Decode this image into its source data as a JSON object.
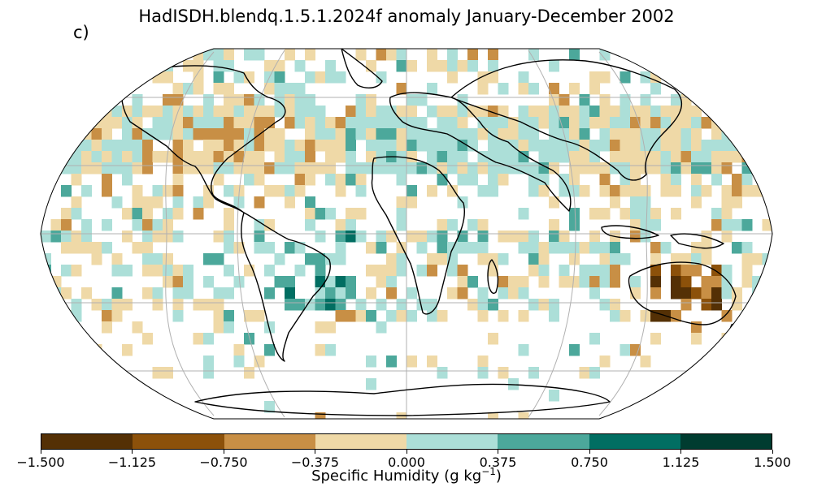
{
  "title": "HadISDH.blendq.1.5.1.2024f anomaly January-December 2002",
  "panel_label": "c)",
  "colorbar": {
    "ticks": [
      "−1.500",
      "−1.125",
      "−0.750",
      "−0.375",
      "0.000",
      "0.375",
      "0.750",
      "1.125",
      "1.500"
    ],
    "label_main": "Specific Humidity (g kg",
    "label_exp": "−1",
    "label_tail": ")",
    "colors": [
      "#543005",
      "#8c510a",
      "#c88f45",
      "#efd9a7",
      "#acdfd8",
      "#4ca89b",
      "#016e62",
      "#003c30"
    ]
  },
  "legend_colors": {
    "land_outline": "#000000",
    "gridline": "#b0b0b0",
    "no_data": "#ffffff"
  }
}
